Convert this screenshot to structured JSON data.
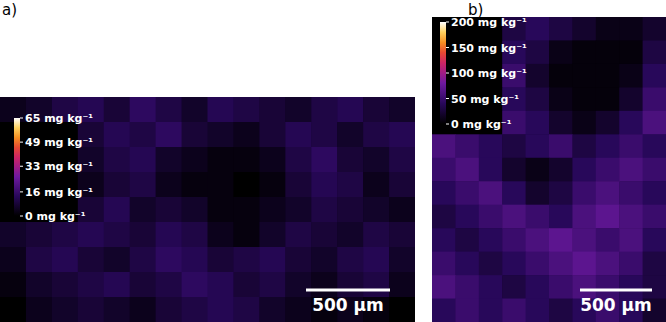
{
  "chart_data": [
    {
      "type": "heatmap",
      "title": "a)",
      "tick_labels": false,
      "annotations": [
        "500 µm"
      ],
      "colorbar_range": [
        0,
        65
      ],
      "colorbar_ticks": [
        {
          "value": 65,
          "label": "65 mg kg⁻¹"
        },
        {
          "value": 49,
          "label": "49 mg kg⁻¹"
        },
        {
          "value": 33,
          "label": "33 mg kg⁻¹"
        },
        {
          "value": 16,
          "label": "16 mg kg⁻¹"
        },
        {
          "value": 0,
          "label": "0 mg kg⁻¹"
        }
      ],
      "cells": [
        [
          4,
          6,
          10,
          12,
          8,
          14,
          10,
          6,
          12,
          10,
          8,
          6,
          10,
          12,
          8,
          6
        ],
        [
          0,
          0,
          0,
          8,
          12,
          10,
          14,
          8,
          6,
          4,
          8,
          12,
          10,
          6,
          10,
          12
        ],
        [
          0,
          0,
          0,
          6,
          10,
          12,
          6,
          4,
          2,
          2,
          4,
          10,
          14,
          8,
          6,
          10
        ],
        [
          0,
          0,
          0,
          4,
          8,
          10,
          4,
          2,
          2,
          0,
          2,
          8,
          12,
          10,
          4,
          8
        ],
        [
          0,
          0,
          0,
          8,
          12,
          6,
          8,
          6,
          2,
          2,
          4,
          6,
          10,
          8,
          6,
          4
        ],
        [
          6,
          8,
          10,
          12,
          10,
          8,
          12,
          10,
          4,
          2,
          6,
          10,
          8,
          6,
          10,
          8
        ],
        [
          4,
          10,
          12,
          8,
          6,
          10,
          14,
          12,
          8,
          10,
          12,
          8,
          6,
          10,
          12,
          6
        ],
        [
          2,
          6,
          8,
          10,
          12,
          8,
          10,
          14,
          12,
          8,
          10,
          6,
          4,
          8,
          10,
          4
        ],
        [
          0,
          4,
          6,
          8,
          6,
          4,
          8,
          10,
          12,
          10,
          6,
          4,
          2,
          4,
          2,
          0
        ]
      ]
    },
    {
      "type": "heatmap",
      "title": "b)",
      "tick_labels": false,
      "annotations": [
        "500 µm"
      ],
      "colorbar_range": [
        0,
        200
      ],
      "colorbar_ticks": [
        {
          "value": 200,
          "label": "200 mg kg⁻¹"
        },
        {
          "value": 150,
          "label": "150 mg kg⁻¹"
        },
        {
          "value": 100,
          "label": "100 mg kg⁻¹"
        },
        {
          "value": 50,
          "label": "50 mg kg⁻¹"
        },
        {
          "value": 0,
          "label": "0 mg kg⁻¹"
        }
      ],
      "cells": [
        [
          0,
          0,
          0,
          30,
          40,
          30,
          20,
          10,
          10,
          20
        ],
        [
          0,
          0,
          0,
          40,
          30,
          10,
          5,
          5,
          5,
          30
        ],
        [
          0,
          0,
          0,
          50,
          20,
          5,
          5,
          5,
          10,
          40
        ],
        [
          0,
          0,
          0,
          40,
          30,
          10,
          5,
          5,
          20,
          50
        ],
        [
          0,
          0,
          0,
          50,
          40,
          20,
          10,
          20,
          40,
          60
        ],
        [
          60,
          50,
          40,
          30,
          40,
          50,
          30,
          40,
          50,
          40
        ],
        [
          50,
          60,
          40,
          20,
          10,
          20,
          40,
          50,
          60,
          50
        ],
        [
          40,
          50,
          60,
          40,
          20,
          30,
          50,
          60,
          50,
          40
        ],
        [
          30,
          40,
          50,
          60,
          50,
          40,
          60,
          70,
          60,
          50
        ],
        [
          40,
          30,
          40,
          50,
          60,
          70,
          60,
          50,
          60,
          40
        ],
        [
          50,
          40,
          30,
          40,
          50,
          60,
          70,
          60,
          50,
          30
        ],
        [
          60,
          50,
          40,
          30,
          40,
          50,
          60,
          50,
          40,
          30
        ],
        [
          40,
          50,
          40,
          50,
          40,
          30,
          40,
          50,
          40,
          20
        ]
      ]
    }
  ]
}
